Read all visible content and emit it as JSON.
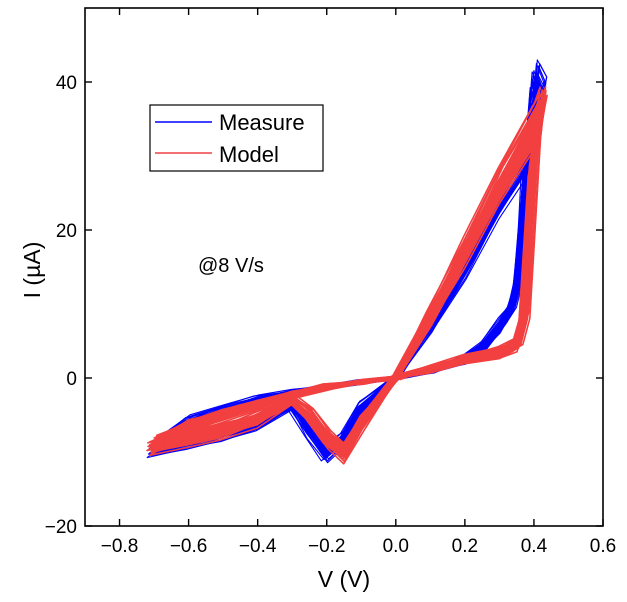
{
  "chart_data": {
    "type": "line",
    "xlabel": "V (V)",
    "ylabel": "I (µA)",
    "xlim": [
      -0.9,
      0.6
    ],
    "ylim": [
      -20,
      50
    ],
    "xticks": [
      -0.8,
      -0.6,
      -0.4,
      -0.2,
      0.0,
      0.2,
      0.4,
      0.6
    ],
    "xtick_labels": [
      "−0.8",
      "−0.6",
      "−0.4",
      "−0.2",
      "0.0",
      "0.2",
      "0.4",
      "0.6"
    ],
    "yticks": [
      -20,
      0,
      20,
      40
    ],
    "ytick_labels": [
      "−20",
      "0",
      "20",
      "40"
    ],
    "annotation": "@8 V/s",
    "legend_position": "upper-left",
    "series": [
      {
        "name": "Measure",
        "color": "#0000ff",
        "cycles": 40,
        "loop": [
          [
            0.0,
            0.0
          ],
          [
            0.1,
            1.0
          ],
          [
            0.2,
            2.5
          ],
          [
            0.25,
            4.0
          ],
          [
            0.3,
            7.0
          ],
          [
            0.33,
            9.0
          ],
          [
            0.35,
            12.0
          ],
          [
            0.37,
            22.0
          ],
          [
            0.38,
            30.0
          ],
          [
            0.4,
            39.0
          ],
          [
            0.42,
            37.0
          ],
          [
            0.4,
            32.0
          ],
          [
            0.3,
            24.0
          ],
          [
            0.2,
            15.0
          ],
          [
            0.1,
            7.0
          ],
          [
            0.0,
            0.0
          ],
          [
            -0.1,
            -4.0
          ],
          [
            -0.15,
            -8.0
          ],
          [
            -0.2,
            -10.0
          ],
          [
            -0.25,
            -7.0
          ],
          [
            -0.3,
            -3.5
          ],
          [
            -0.4,
            -6.0
          ],
          [
            -0.5,
            -7.5
          ],
          [
            -0.6,
            -8.5
          ],
          [
            -0.7,
            -9.5
          ],
          [
            -0.6,
            -6.0
          ],
          [
            -0.5,
            -4.5
          ],
          [
            -0.4,
            -3.0
          ],
          [
            -0.3,
            -2.0
          ],
          [
            -0.2,
            -1.2
          ],
          [
            -0.1,
            -0.5
          ],
          [
            0.0,
            0.0
          ]
        ]
      },
      {
        "name": "Model",
        "color": "#f24040",
        "cycles": 40,
        "loop": [
          [
            0.0,
            0.0
          ],
          [
            0.1,
            1.2
          ],
          [
            0.2,
            2.5
          ],
          [
            0.3,
            3.5
          ],
          [
            0.35,
            4.5
          ],
          [
            0.37,
            8.0
          ],
          [
            0.4,
            30.0
          ],
          [
            0.42,
            36.0
          ],
          [
            0.4,
            34.0
          ],
          [
            0.3,
            26.0
          ],
          [
            0.2,
            17.0
          ],
          [
            0.1,
            8.0
          ],
          [
            0.0,
            0.0
          ],
          [
            -0.1,
            -6.0
          ],
          [
            -0.15,
            -10.0
          ],
          [
            -0.2,
            -8.0
          ],
          [
            -0.25,
            -5.0
          ],
          [
            -0.3,
            -3.0
          ],
          [
            -0.4,
            -5.5
          ],
          [
            -0.5,
            -7.0
          ],
          [
            -0.6,
            -8.0
          ],
          [
            -0.7,
            -9.0
          ],
          [
            -0.6,
            -6.5
          ],
          [
            -0.5,
            -5.0
          ],
          [
            -0.4,
            -3.5
          ],
          [
            -0.3,
            -2.2
          ],
          [
            -0.2,
            -1.2
          ],
          [
            -0.1,
            -0.5
          ],
          [
            0.0,
            0.0
          ]
        ]
      }
    ]
  }
}
